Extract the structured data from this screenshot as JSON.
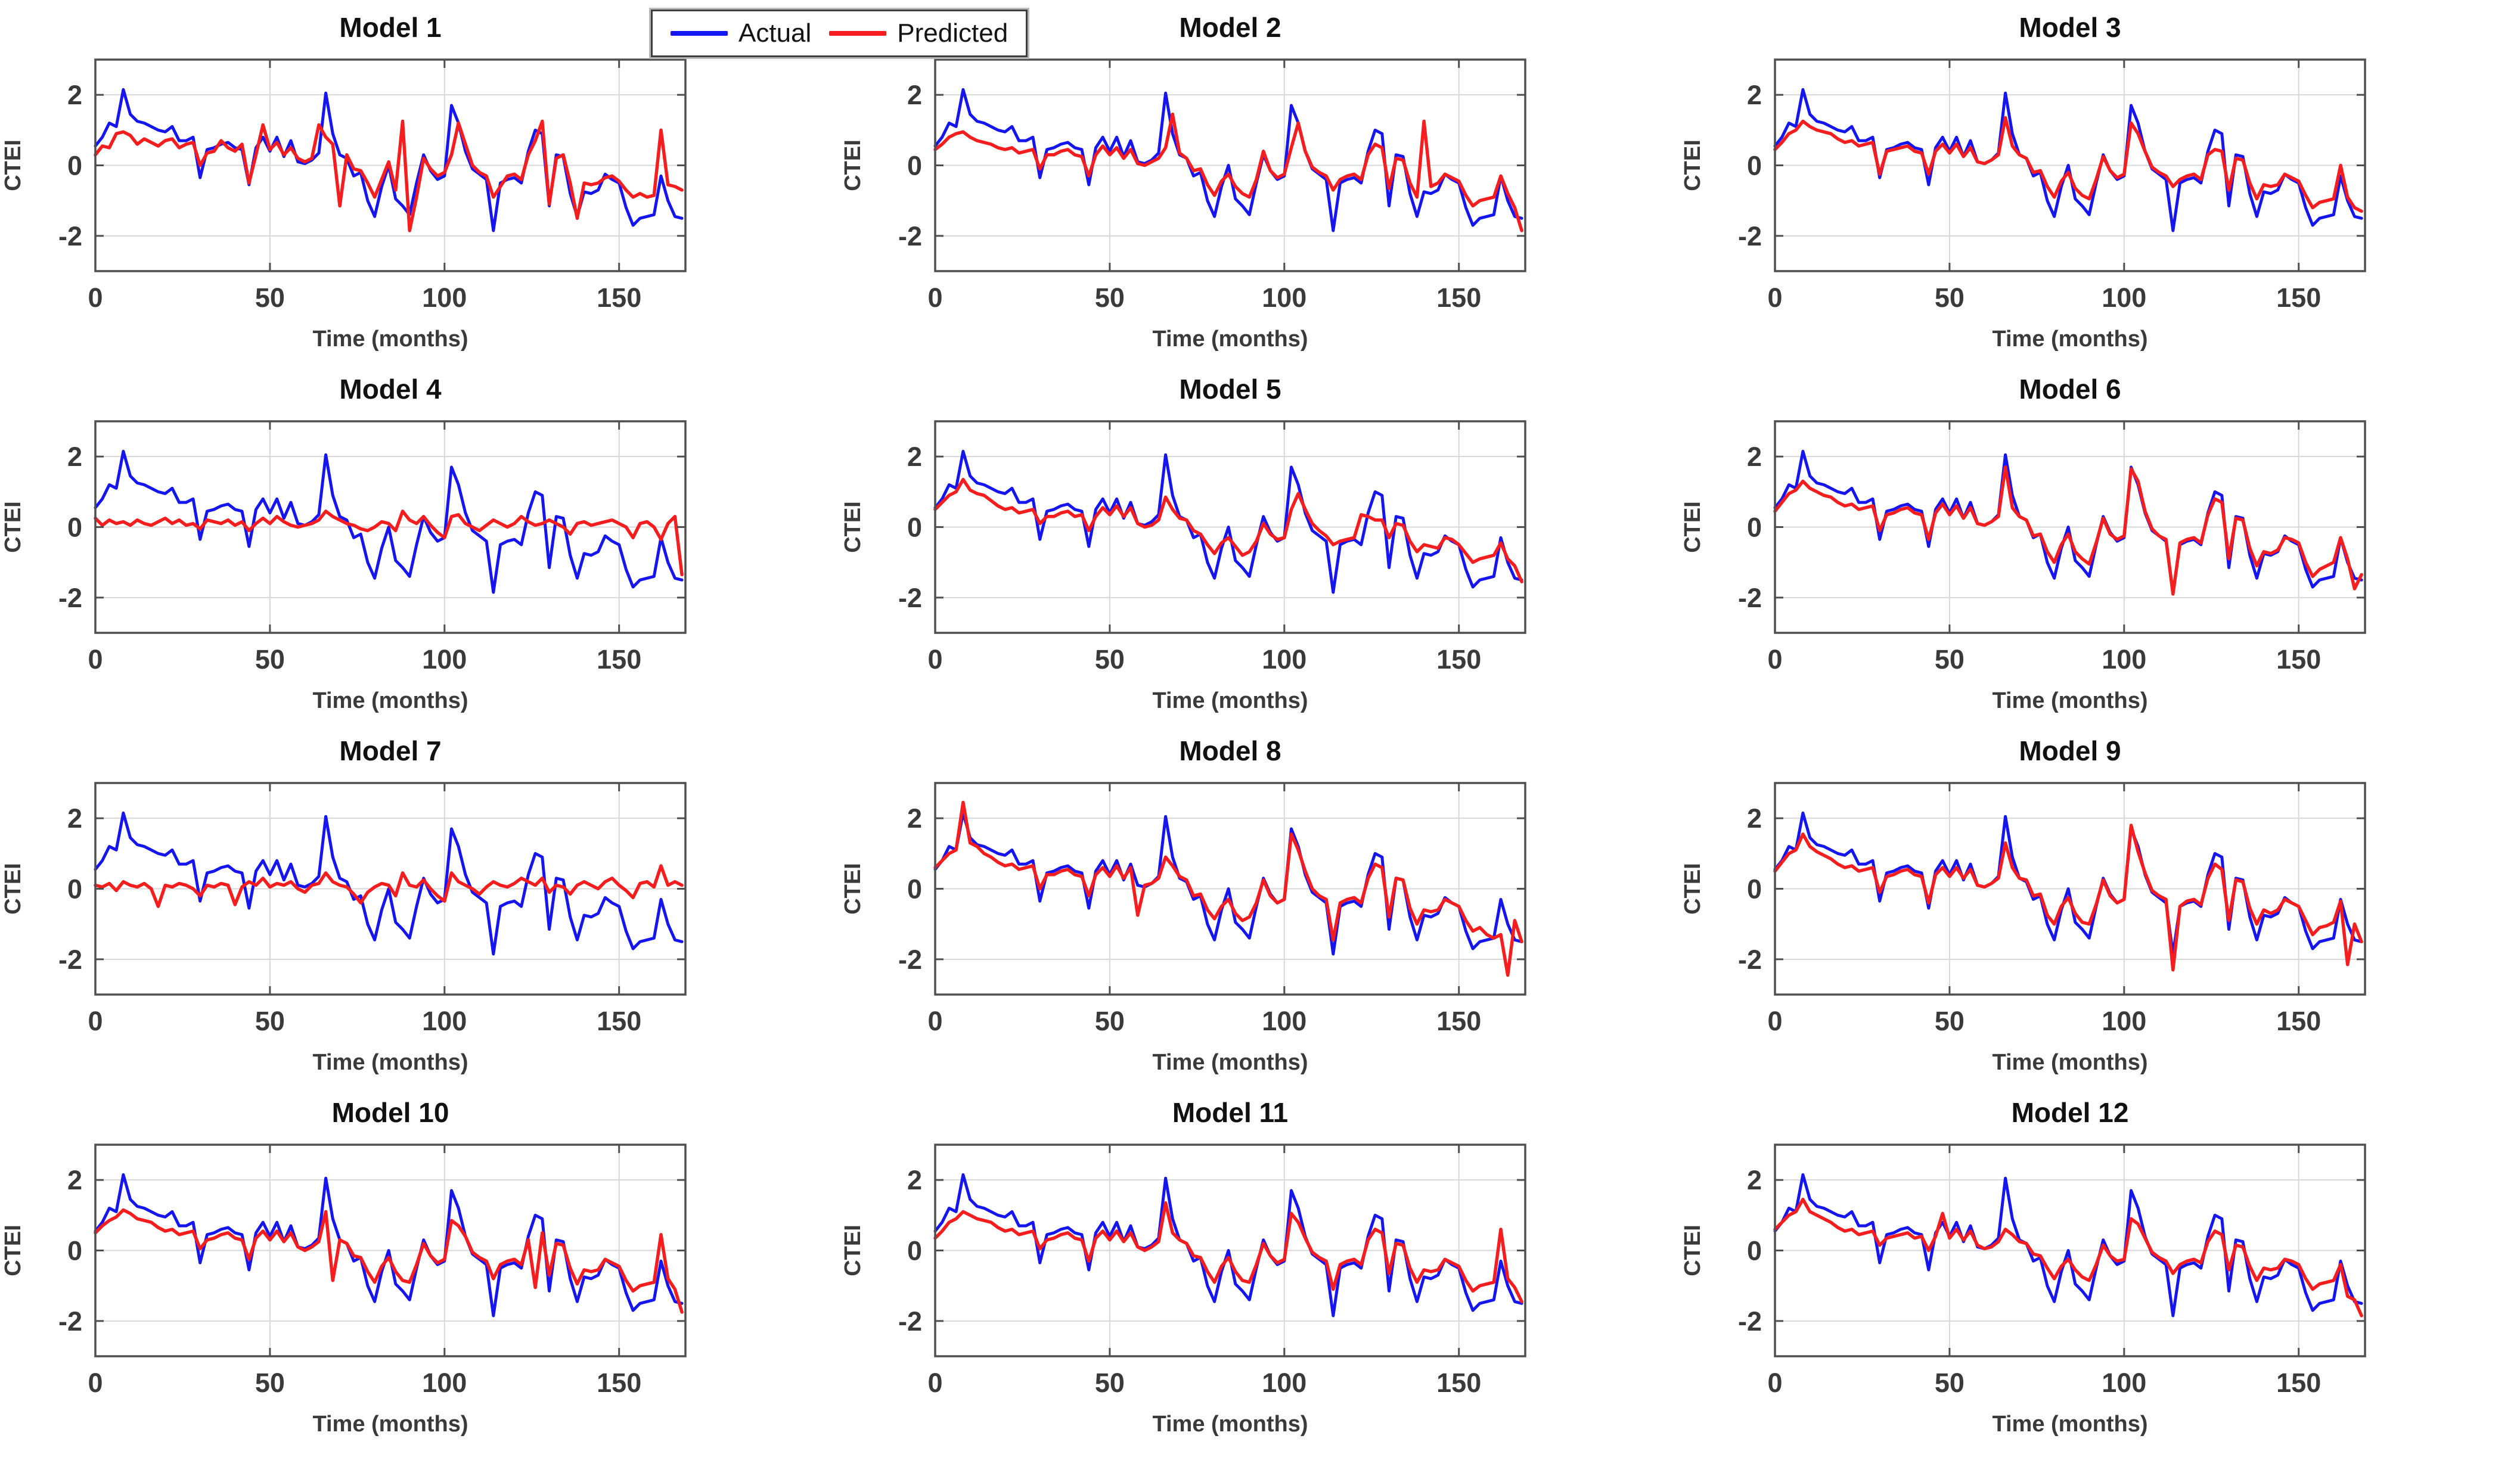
{
  "figure": {
    "background": "#ffffff"
  },
  "legend": {
    "entries": [
      {
        "label": "Actual",
        "color": "#1515f0"
      },
      {
        "label": "Predicted",
        "color": "#f51d1d"
      }
    ]
  },
  "styles": {
    "grid_color": "#d8d8d8",
    "axis_color": "#4f4f4f",
    "tick_label_color": "#3a3a3a",
    "title_color": "#111111",
    "label_color": "#3a3a3a"
  },
  "chart_data": {
    "type": "line",
    "layout": {
      "rows": 4,
      "cols": 3
    },
    "title": "",
    "xlabel": "Time (months)",
    "ylabel": "CTEI",
    "x_start": 0,
    "x_step": 2,
    "xlim": [
      0,
      169
    ],
    "ylim": [
      -3,
      3
    ],
    "xticks": [
      0,
      50,
      100,
      150
    ],
    "yticks": [
      -2,
      0,
      2
    ],
    "grid": true,
    "legend_position": "top-center-left",
    "series_colors": {
      "actual": "#1515f0",
      "predicted": "#f51d1d"
    },
    "actual": [
      0.55,
      0.8,
      1.2,
      1.1,
      2.15,
      1.45,
      1.25,
      1.2,
      1.1,
      1.0,
      0.95,
      1.1,
      0.7,
      0.7,
      0.8,
      -0.35,
      0.45,
      0.5,
      0.6,
      0.65,
      0.5,
      0.45,
      -0.55,
      0.5,
      0.8,
      0.4,
      0.8,
      0.25,
      0.7,
      0.1,
      0.05,
      0.15,
      0.35,
      2.05,
      0.9,
      0.3,
      0.2,
      -0.3,
      -0.2,
      -1.0,
      -1.45,
      -0.6,
      0.0,
      -0.95,
      -1.15,
      -1.4,
      -0.5,
      0.3,
      -0.15,
      -0.4,
      -0.3,
      1.7,
      1.2,
      0.4,
      -0.1,
      -0.25,
      -0.4,
      -1.85,
      -0.5,
      -0.4,
      -0.35,
      -0.5,
      0.4,
      1.0,
      0.9,
      -1.15,
      0.3,
      0.25,
      -0.8,
      -1.45,
      -0.75,
      -0.8,
      -0.7,
      -0.25,
      -0.4,
      -0.5,
      -1.2,
      -1.7,
      -1.5,
      -1.45,
      -1.4,
      -0.3,
      -1.0,
      -1.45,
      -1.5
    ],
    "panels": [
      {
        "title": "Model 1",
        "predicted": [
          0.3,
          0.55,
          0.5,
          0.9,
          0.95,
          0.85,
          0.6,
          0.75,
          0.65,
          0.55,
          0.7,
          0.75,
          0.5,
          0.6,
          0.65,
          0.0,
          0.35,
          0.4,
          0.7,
          0.5,
          0.4,
          0.6,
          -0.5,
          0.3,
          1.15,
          0.45,
          0.65,
          0.3,
          0.5,
          0.2,
          0.1,
          0.2,
          1.15,
          0.8,
          0.6,
          -1.15,
          0.3,
          -0.1,
          -0.15,
          -0.5,
          -0.9,
          -0.4,
          0.1,
          -0.7,
          1.25,
          -1.85,
          -0.9,
          0.2,
          -0.1,
          -0.3,
          -0.2,
          0.3,
          1.2,
          0.6,
          0.0,
          -0.2,
          -0.3,
          -0.9,
          -0.6,
          -0.3,
          -0.25,
          -0.4,
          0.3,
          0.7,
          1.25,
          -1.1,
          0.2,
          0.3,
          -0.5,
          -1.5,
          -0.5,
          -0.55,
          -0.5,
          -0.35,
          -0.3,
          -0.45,
          -0.7,
          -0.9,
          -0.8,
          -0.9,
          -0.85,
          1.0,
          -0.55,
          -0.6,
          -0.7
        ]
      },
      {
        "title": "Model 2",
        "predicted": [
          0.45,
          0.6,
          0.8,
          0.9,
          0.95,
          0.8,
          0.7,
          0.65,
          0.6,
          0.5,
          0.45,
          0.5,
          0.35,
          0.4,
          0.45,
          -0.1,
          0.3,
          0.3,
          0.4,
          0.45,
          0.3,
          0.25,
          -0.3,
          0.3,
          0.55,
          0.3,
          0.5,
          0.2,
          0.45,
          0.05,
          0.0,
          0.1,
          0.2,
          0.5,
          1.45,
          0.35,
          0.2,
          -0.15,
          -0.1,
          -0.55,
          -0.85,
          -0.45,
          -0.25,
          -0.6,
          -0.8,
          -0.9,
          -0.4,
          0.4,
          -0.15,
          -0.35,
          -0.25,
          0.5,
          1.2,
          0.4,
          -0.05,
          -0.2,
          -0.3,
          -0.7,
          -0.4,
          -0.3,
          -0.25,
          -0.4,
          0.3,
          0.6,
          0.5,
          -0.65,
          0.2,
          0.15,
          -0.5,
          -0.9,
          1.25,
          -0.6,
          -0.5,
          -0.25,
          -0.35,
          -0.45,
          -0.85,
          -1.15,
          -1.0,
          -0.95,
          -0.9,
          -0.3,
          -0.8,
          -1.2,
          -1.85
        ]
      },
      {
        "title": "Model 3",
        "predicted": [
          0.45,
          0.65,
          0.9,
          1.0,
          1.25,
          1.1,
          1.0,
          0.95,
          0.9,
          0.75,
          0.65,
          0.7,
          0.55,
          0.6,
          0.65,
          -0.25,
          0.4,
          0.45,
          0.5,
          0.55,
          0.4,
          0.35,
          -0.25,
          0.4,
          0.6,
          0.35,
          0.6,
          0.25,
          0.5,
          0.1,
          0.05,
          0.15,
          0.3,
          1.35,
          0.55,
          0.3,
          0.2,
          -0.2,
          -0.15,
          -0.6,
          -0.9,
          -0.45,
          -0.2,
          -0.65,
          -0.85,
          -0.95,
          -0.4,
          0.25,
          -0.15,
          -0.35,
          -0.25,
          1.2,
          0.9,
          0.4,
          -0.05,
          -0.2,
          -0.3,
          -0.6,
          -0.4,
          -0.3,
          -0.25,
          -0.4,
          0.3,
          0.45,
          0.4,
          -0.7,
          0.2,
          0.15,
          -0.5,
          -0.95,
          -0.55,
          -0.6,
          -0.55,
          -0.25,
          -0.35,
          -0.45,
          -0.85,
          -1.2,
          -1.05,
          -1.0,
          -0.95,
          0.0,
          -0.9,
          -1.2,
          -1.3
        ]
      },
      {
        "title": "Model 4",
        "predicted": [
          0.25,
          0.05,
          0.2,
          0.1,
          0.15,
          0.05,
          0.2,
          0.1,
          0.05,
          0.15,
          0.25,
          0.1,
          0.2,
          0.05,
          0.1,
          -0.05,
          0.2,
          0.15,
          0.1,
          0.2,
          0.05,
          0.15,
          -0.1,
          0.1,
          0.25,
          0.1,
          0.3,
          0.15,
          0.05,
          0.0,
          0.05,
          0.1,
          0.2,
          0.45,
          0.3,
          0.2,
          0.1,
          0.05,
          -0.05,
          -0.1,
          0.0,
          0.15,
          0.1,
          -0.1,
          0.45,
          0.2,
          0.1,
          0.3,
          0.05,
          -0.15,
          -0.3,
          0.3,
          0.35,
          0.1,
          0.0,
          -0.1,
          0.05,
          0.2,
          0.1,
          0.0,
          0.1,
          0.3,
          0.15,
          0.05,
          0.1,
          0.2,
          0.1,
          0.0,
          -0.2,
          0.1,
          0.15,
          0.05,
          0.1,
          0.15,
          0.2,
          0.1,
          0.0,
          -0.3,
          0.1,
          0.15,
          0.0,
          -0.35,
          0.1,
          0.3,
          -1.35
        ]
      },
      {
        "title": "Model 5",
        "predicted": [
          0.5,
          0.7,
          0.9,
          1.0,
          1.35,
          1.05,
          0.95,
          0.9,
          0.75,
          0.6,
          0.5,
          0.55,
          0.4,
          0.45,
          0.5,
          0.1,
          0.3,
          0.3,
          0.4,
          0.45,
          0.3,
          0.35,
          -0.1,
          0.3,
          0.55,
          0.35,
          0.6,
          0.3,
          0.55,
          0.1,
          0.0,
          0.05,
          0.2,
          0.85,
          0.5,
          0.25,
          0.2,
          -0.1,
          -0.2,
          -0.5,
          -0.75,
          -0.45,
          -0.3,
          -0.55,
          -0.8,
          -0.7,
          -0.4,
          0.1,
          -0.2,
          -0.35,
          -0.3,
          0.5,
          0.95,
          0.5,
          0.1,
          -0.1,
          -0.25,
          -0.5,
          -0.4,
          -0.35,
          -0.3,
          0.35,
          0.3,
          0.2,
          0.2,
          -0.3,
          0.1,
          0.05,
          -0.4,
          -0.7,
          -0.5,
          -0.55,
          -0.6,
          -0.3,
          -0.35,
          -0.5,
          -0.75,
          -1.0,
          -0.9,
          -0.85,
          -0.8,
          -0.45,
          -0.9,
          -1.1,
          -1.55
        ]
      },
      {
        "title": "Model 6",
        "predicted": [
          0.45,
          0.7,
          0.95,
          1.05,
          1.3,
          1.1,
          1.0,
          0.9,
          0.85,
          0.7,
          0.6,
          0.65,
          0.5,
          0.55,
          0.6,
          -0.1,
          0.35,
          0.4,
          0.5,
          0.55,
          0.4,
          0.35,
          -0.35,
          0.4,
          0.65,
          0.35,
          0.6,
          0.25,
          0.55,
          0.1,
          0.05,
          0.15,
          0.3,
          1.7,
          0.55,
          0.3,
          0.2,
          -0.25,
          -0.2,
          -0.7,
          -1.0,
          -0.5,
          -0.2,
          -0.7,
          -0.9,
          -1.05,
          -0.45,
          0.25,
          -0.2,
          -0.35,
          -0.25,
          1.65,
          1.3,
          0.45,
          -0.05,
          -0.25,
          -0.35,
          -1.9,
          -0.45,
          -0.35,
          -0.3,
          -0.45,
          0.35,
          0.8,
          0.7,
          -0.9,
          0.25,
          0.2,
          -0.6,
          -1.1,
          -0.7,
          -0.75,
          -0.65,
          -0.3,
          -0.35,
          -0.45,
          -1.0,
          -1.4,
          -1.2,
          -1.1,
          -1.0,
          -0.3,
          -0.9,
          -1.75,
          -1.35
        ]
      },
      {
        "title": "Model 7",
        "predicted": [
          0.1,
          0.05,
          0.15,
          -0.05,
          0.2,
          0.1,
          0.05,
          0.15,
          0.0,
          -0.5,
          0.1,
          0.05,
          0.15,
          0.1,
          0.0,
          -0.2,
          0.1,
          0.05,
          0.15,
          0.1,
          -0.45,
          0.05,
          0.2,
          0.1,
          0.3,
          0.05,
          0.15,
          0.1,
          0.2,
          0.0,
          -0.1,
          0.1,
          0.15,
          0.45,
          0.2,
          0.1,
          0.05,
          -0.15,
          -0.4,
          -0.1,
          0.05,
          0.15,
          0.1,
          -0.2,
          0.45,
          0.1,
          0.05,
          0.25,
          0.0,
          -0.2,
          -0.35,
          0.45,
          0.2,
          0.1,
          0.0,
          -0.15,
          0.05,
          0.2,
          0.1,
          0.05,
          0.15,
          0.3,
          0.2,
          0.1,
          0.3,
          -0.1,
          0.1,
          0.05,
          -0.15,
          0.1,
          0.2,
          0.1,
          0.0,
          0.2,
          0.3,
          0.1,
          -0.05,
          -0.25,
          0.15,
          0.2,
          0.05,
          0.65,
          0.1,
          0.2,
          0.1
        ]
      },
      {
        "title": "Model 8",
        "predicted": [
          0.6,
          0.8,
          1.0,
          1.1,
          2.45,
          1.3,
          1.2,
          1.0,
          0.9,
          0.75,
          0.65,
          0.7,
          0.55,
          0.6,
          0.65,
          0.0,
          0.4,
          0.4,
          0.5,
          0.55,
          0.4,
          0.35,
          -0.2,
          0.4,
          0.6,
          0.35,
          0.65,
          0.3,
          0.6,
          -0.75,
          0.1,
          0.15,
          0.3,
          0.9,
          0.65,
          0.35,
          0.25,
          -0.2,
          -0.15,
          -0.6,
          -0.85,
          -0.5,
          -0.3,
          -0.7,
          -0.9,
          -0.8,
          -0.4,
          0.25,
          -0.2,
          -0.4,
          -0.3,
          1.55,
          1.1,
          0.5,
          0.0,
          -0.2,
          -0.3,
          -1.45,
          -0.4,
          -0.3,
          -0.25,
          -0.4,
          0.3,
          0.7,
          0.6,
          -0.8,
          0.3,
          0.25,
          -0.55,
          -1.0,
          -0.6,
          -0.65,
          -0.6,
          -0.3,
          -0.4,
          -0.5,
          -0.9,
          -1.2,
          -1.1,
          -1.3,
          -1.4,
          -1.3,
          -2.45,
          -0.9,
          -1.5
        ]
      },
      {
        "title": "Model 9",
        "predicted": [
          0.5,
          0.75,
          1.0,
          1.1,
          1.55,
          1.2,
          1.05,
          0.95,
          0.85,
          0.7,
          0.6,
          0.65,
          0.5,
          0.55,
          0.6,
          -0.1,
          0.35,
          0.4,
          0.5,
          0.55,
          0.4,
          0.35,
          -0.4,
          0.4,
          0.6,
          0.35,
          0.6,
          0.3,
          0.55,
          0.1,
          0.05,
          0.15,
          0.3,
          1.3,
          0.6,
          0.3,
          0.25,
          -0.2,
          -0.15,
          -0.75,
          -1.0,
          -0.5,
          -0.25,
          -0.7,
          -0.95,
          -1.0,
          -0.45,
          0.25,
          -0.2,
          -0.4,
          -0.3,
          1.8,
          1.05,
          0.45,
          -0.05,
          -0.2,
          -0.3,
          -2.3,
          -0.5,
          -0.35,
          -0.3,
          -0.45,
          0.3,
          0.7,
          0.55,
          -0.9,
          0.25,
          0.2,
          -0.55,
          -1.0,
          -0.6,
          -0.7,
          -0.6,
          -0.3,
          -0.4,
          -0.5,
          -0.9,
          -1.3,
          -1.1,
          -1.05,
          -0.95,
          -0.35,
          -2.15,
          -1.0,
          -1.5
        ]
      },
      {
        "title": "Model 10",
        "predicted": [
          0.5,
          0.7,
          0.85,
          0.95,
          1.15,
          1.05,
          0.9,
          0.85,
          0.8,
          0.65,
          0.55,
          0.6,
          0.45,
          0.5,
          0.55,
          0.05,
          0.3,
          0.35,
          0.45,
          0.5,
          0.35,
          0.3,
          -0.25,
          0.35,
          0.55,
          0.3,
          0.55,
          0.25,
          0.5,
          0.1,
          0.0,
          0.1,
          0.25,
          1.1,
          -0.85,
          0.3,
          0.2,
          -0.15,
          -0.2,
          -0.6,
          -0.9,
          -0.45,
          -0.2,
          -0.6,
          -0.85,
          -0.9,
          -0.4,
          0.2,
          -0.15,
          -0.35,
          -0.25,
          0.85,
          0.7,
          0.4,
          -0.05,
          -0.2,
          -0.3,
          -0.8,
          -0.4,
          -0.3,
          -0.25,
          -0.4,
          0.3,
          -1.05,
          0.5,
          -0.7,
          0.2,
          0.15,
          -0.5,
          -0.95,
          -0.55,
          -0.6,
          -0.55,
          -0.25,
          -0.35,
          -0.45,
          -0.85,
          -1.15,
          -1.0,
          -0.95,
          -0.9,
          0.45,
          -0.8,
          -1.1,
          -1.75
        ]
      },
      {
        "title": "Model 11",
        "predicted": [
          0.35,
          0.55,
          0.8,
          0.9,
          1.1,
          1.0,
          0.9,
          0.85,
          0.8,
          0.65,
          0.55,
          0.6,
          0.45,
          0.5,
          0.55,
          0.05,
          0.3,
          0.35,
          0.45,
          0.5,
          0.35,
          0.3,
          -0.3,
          0.35,
          0.55,
          0.3,
          0.55,
          0.25,
          0.5,
          0.1,
          0.0,
          0.1,
          0.25,
          1.35,
          0.5,
          0.3,
          0.2,
          -0.15,
          -0.2,
          -0.6,
          -0.9,
          -0.45,
          -0.2,
          -0.6,
          -0.85,
          -0.9,
          -0.4,
          0.2,
          -0.15,
          -0.35,
          -0.25,
          1.05,
          0.8,
          0.35,
          -0.05,
          -0.2,
          -0.3,
          -1.1,
          -0.4,
          -0.3,
          -0.25,
          -0.4,
          0.3,
          0.6,
          0.5,
          -0.65,
          0.2,
          0.15,
          -0.5,
          -0.9,
          -0.55,
          -0.6,
          -0.55,
          -0.25,
          -0.35,
          -0.45,
          -0.85,
          -1.15,
          -1.0,
          -0.95,
          -0.9,
          0.6,
          -0.8,
          -1.05,
          -1.45
        ]
      },
      {
        "title": "Model 12",
        "predicted": [
          0.6,
          0.8,
          1.0,
          1.1,
          1.45,
          1.1,
          1.0,
          0.9,
          0.8,
          0.65,
          0.55,
          0.6,
          0.45,
          0.5,
          0.55,
          0.15,
          0.35,
          0.4,
          0.45,
          0.5,
          0.35,
          0.4,
          0.0,
          0.4,
          1.05,
          0.35,
          0.6,
          0.3,
          0.55,
          0.15,
          0.05,
          0.1,
          0.25,
          0.6,
          0.45,
          0.25,
          0.2,
          -0.1,
          -0.15,
          -0.5,
          -0.8,
          -0.45,
          -0.25,
          -0.55,
          -0.75,
          -0.85,
          -0.4,
          0.15,
          -0.15,
          -0.3,
          -0.25,
          0.9,
          0.75,
          0.35,
          -0.05,
          -0.2,
          -0.3,
          -0.65,
          -0.4,
          -0.3,
          -0.25,
          -0.35,
          0.25,
          0.55,
          0.45,
          -0.55,
          0.15,
          0.1,
          -0.45,
          -0.85,
          -0.5,
          -0.55,
          -0.5,
          -0.25,
          -0.3,
          -0.4,
          -0.8,
          -1.1,
          -0.95,
          -0.9,
          -0.85,
          -0.4,
          -1.3,
          -1.4,
          -1.85
        ]
      }
    ]
  }
}
